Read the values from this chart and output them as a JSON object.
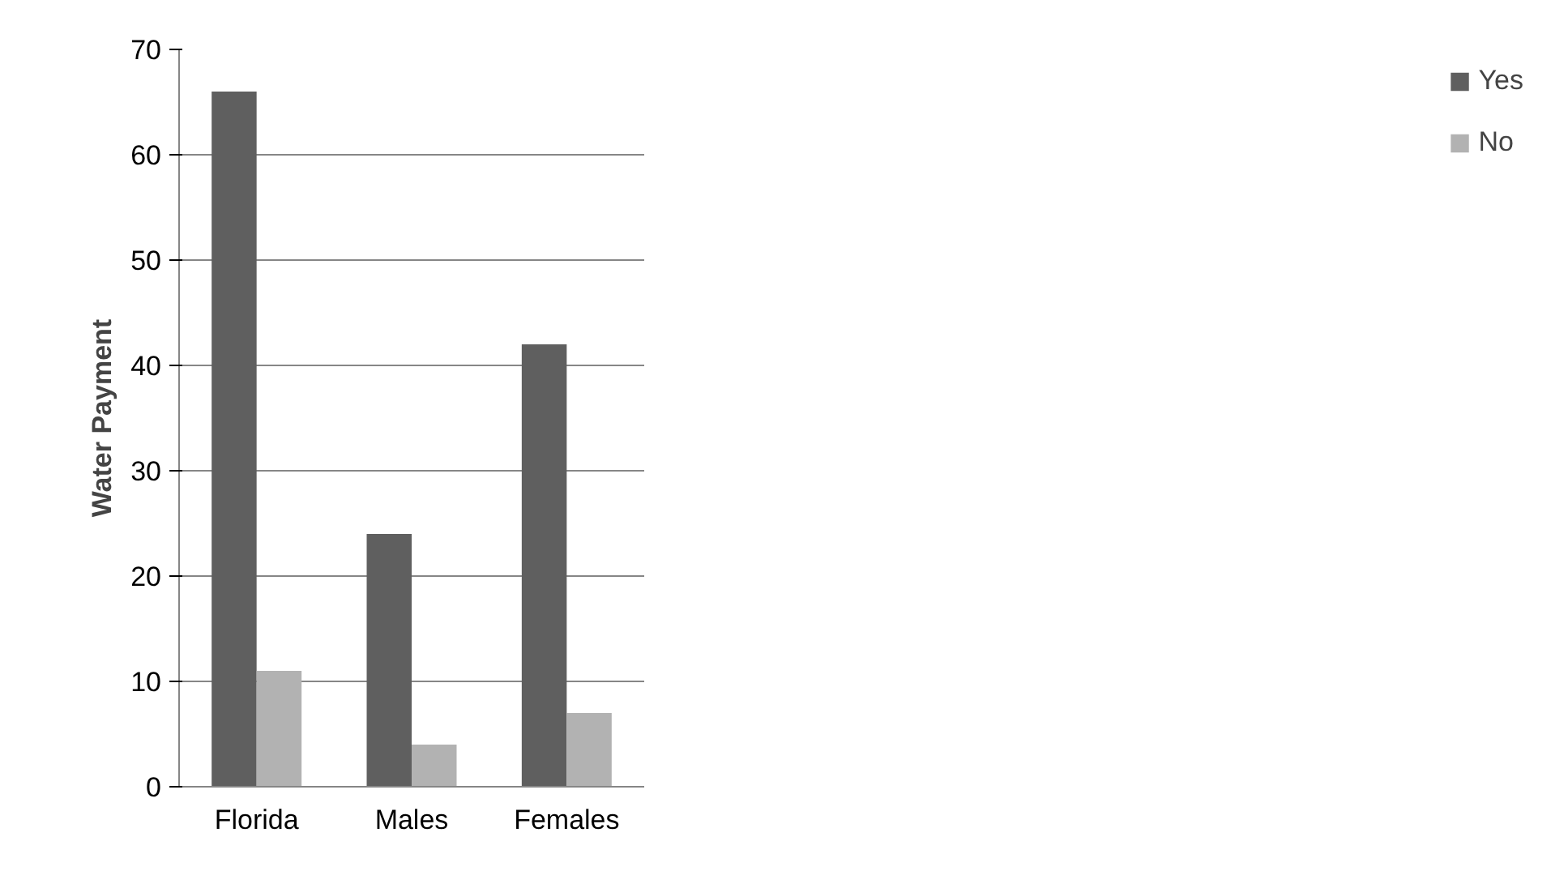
{
  "chart_data": {
    "type": "bar",
    "ylabel": "Water Payment",
    "categories": [
      "Florida",
      "Males",
      "Females"
    ],
    "series": [
      {
        "name": "Yes",
        "color": "#5f5f5f",
        "values": [
          66,
          24,
          42
        ]
      },
      {
        "name": "No",
        "color": "#b2b2b2",
        "values": [
          11,
          4,
          7
        ]
      }
    ],
    "ylim": [
      0,
      70
    ],
    "yticks": [
      0,
      10,
      20,
      30,
      40,
      50,
      60,
      70
    ],
    "grid": "y",
    "legend": "right"
  }
}
